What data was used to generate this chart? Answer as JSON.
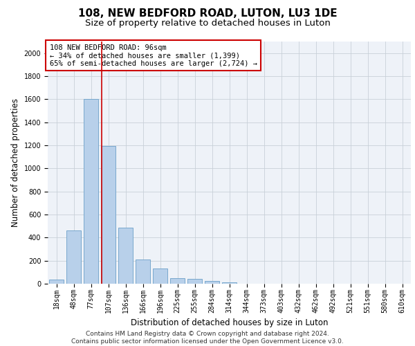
{
  "title": "108, NEW BEDFORD ROAD, LUTON, LU3 1DE",
  "subtitle": "Size of property relative to detached houses in Luton",
  "xlabel": "Distribution of detached houses by size in Luton",
  "ylabel": "Number of detached properties",
  "categories": [
    "18sqm",
    "48sqm",
    "77sqm",
    "107sqm",
    "136sqm",
    "166sqm",
    "196sqm",
    "225sqm",
    "255sqm",
    "284sqm",
    "314sqm",
    "344sqm",
    "373sqm",
    "403sqm",
    "432sqm",
    "462sqm",
    "492sqm",
    "521sqm",
    "551sqm",
    "580sqm",
    "610sqm"
  ],
  "values": [
    35,
    460,
    1600,
    1195,
    485,
    210,
    130,
    50,
    40,
    25,
    15,
    0,
    0,
    0,
    0,
    0,
    0,
    0,
    0,
    0,
    0
  ],
  "bar_color": "#b8d0ea",
  "bar_edge_color": "#6a9fc8",
  "vline_color": "#cc0000",
  "annotation_line1": "108 NEW BEDFORD ROAD: 96sqm",
  "annotation_line2": "← 34% of detached houses are smaller (1,399)",
  "annotation_line3": "65% of semi-detached houses are larger (2,724) →",
  "annotation_box_color": "#ffffff",
  "annotation_box_edge_color": "#cc0000",
  "ylim": [
    0,
    2100
  ],
  "yticks": [
    0,
    200,
    400,
    600,
    800,
    1000,
    1200,
    1400,
    1600,
    1800,
    2000
  ],
  "grid_color": "#c8d0d8",
  "bg_color": "#eef2f8",
  "footer_line1": "Contains HM Land Registry data © Crown copyright and database right 2024.",
  "footer_line2": "Contains public sector information licensed under the Open Government Licence v3.0.",
  "title_fontsize": 11,
  "subtitle_fontsize": 9.5,
  "axis_label_fontsize": 8.5,
  "tick_fontsize": 7,
  "annotation_fontsize": 7.5,
  "footer_fontsize": 6.5
}
